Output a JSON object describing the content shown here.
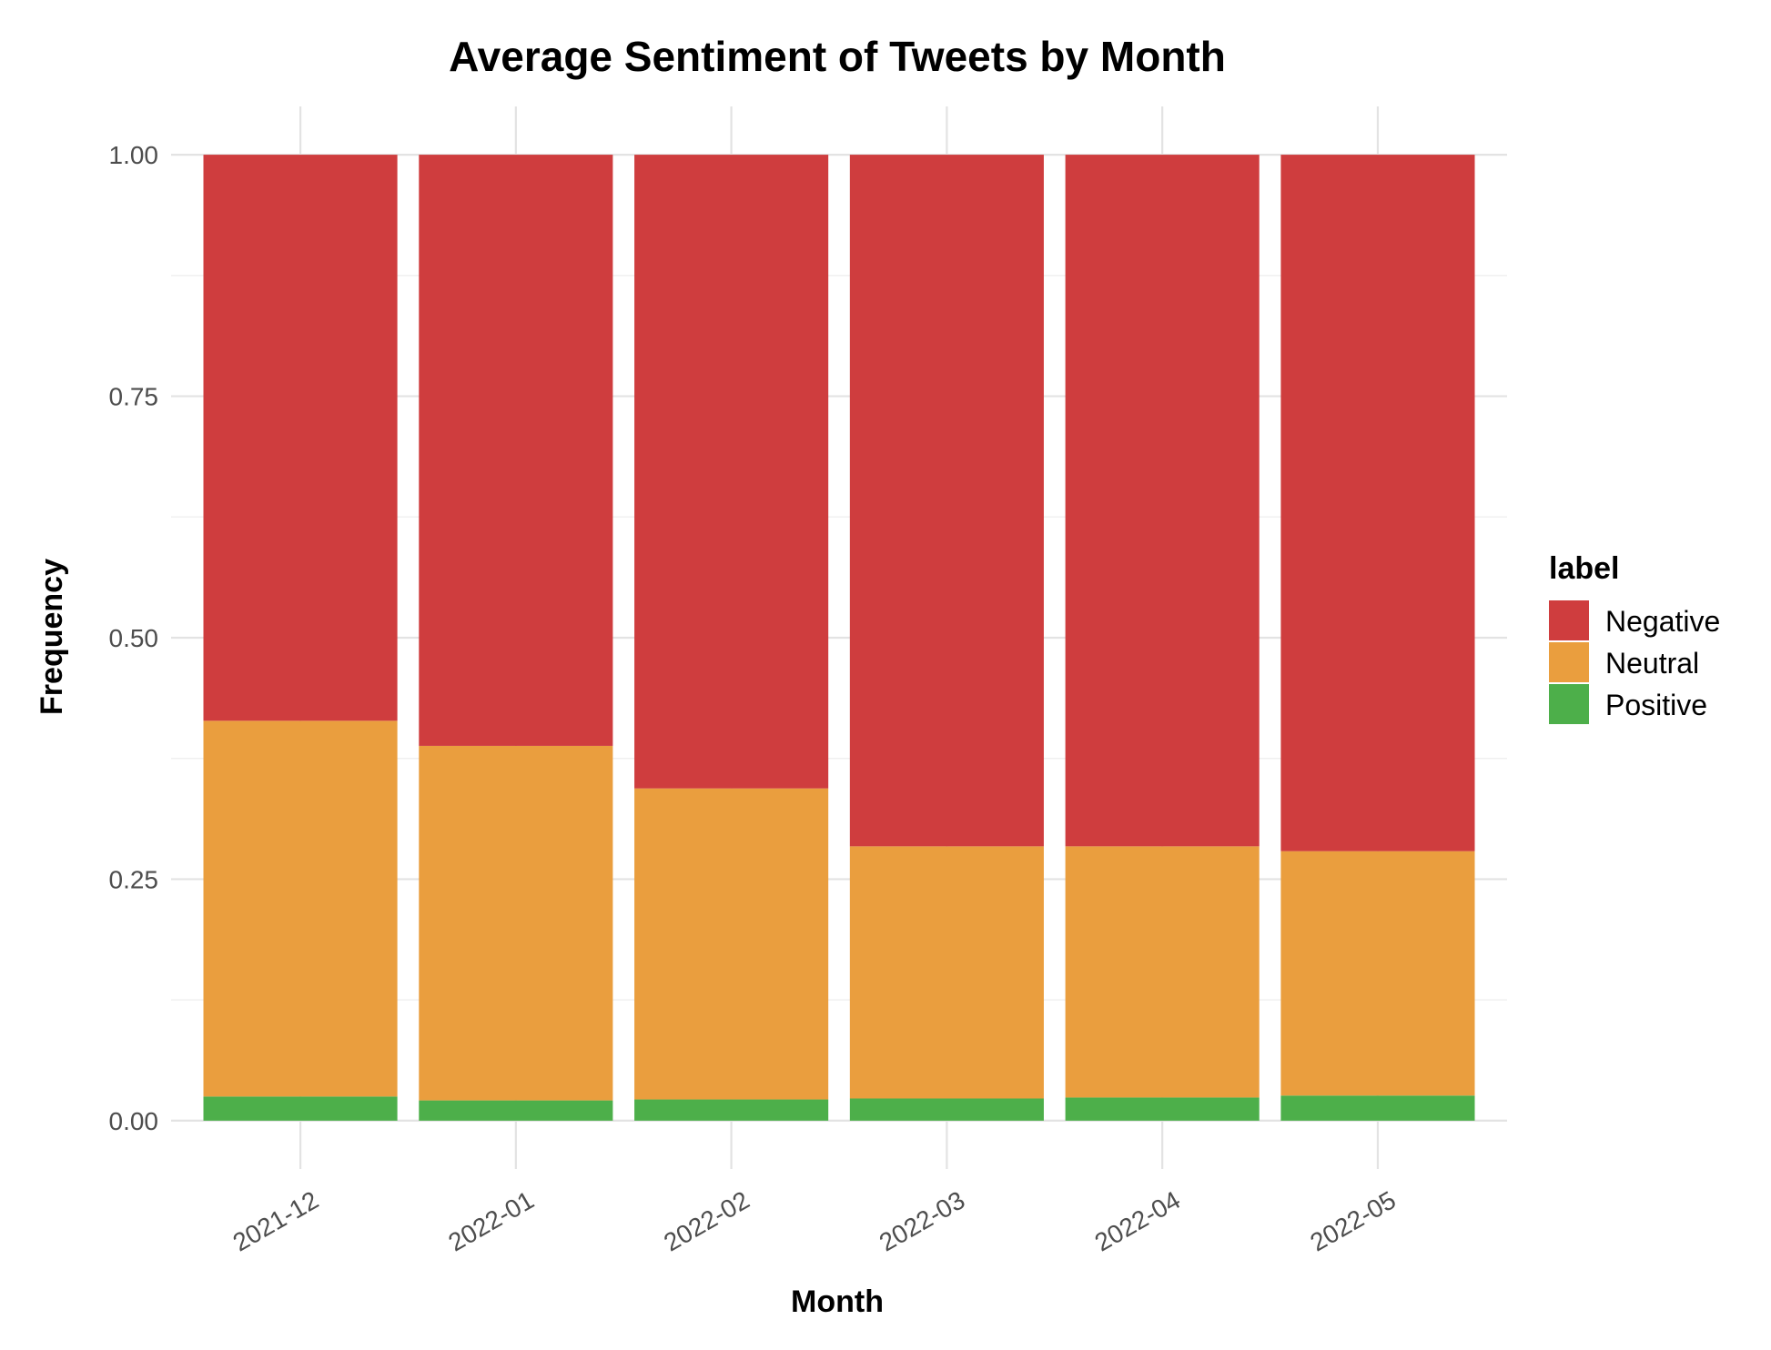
{
  "chart_data": {
    "type": "bar",
    "stacked": true,
    "title": "Average Sentiment of Tweets by Month",
    "xlabel": "Month",
    "ylabel": "Frequency",
    "categories": [
      "2021-12",
      "2022-01",
      "2022-02",
      "2022-03",
      "2022-04",
      "2022-05"
    ],
    "series": [
      {
        "name": "Positive",
        "color": "#4daf4a",
        "values": [
          0.025,
          0.021,
          0.022,
          0.023,
          0.024,
          0.026
        ]
      },
      {
        "name": "Neutral",
        "color": "#ea9e3e",
        "values": [
          0.389,
          0.367,
          0.322,
          0.261,
          0.26,
          0.253
        ]
      },
      {
        "name": "Negative",
        "color": "#cf3d3e",
        "values": [
          0.586,
          0.612,
          0.656,
          0.716,
          0.716,
          0.721
        ]
      }
    ],
    "ylim": [
      -0.05,
      1.05
    ],
    "yticks": [
      0,
      0.25,
      0.5,
      0.75,
      1
    ],
    "ytick_labels": [
      "0.00",
      "0.25",
      "0.50",
      "0.75",
      "1.00"
    ],
    "grid": true,
    "legend": {
      "title": "label",
      "position": "right",
      "items": [
        "Negative",
        "Neutral",
        "Positive"
      ]
    }
  }
}
